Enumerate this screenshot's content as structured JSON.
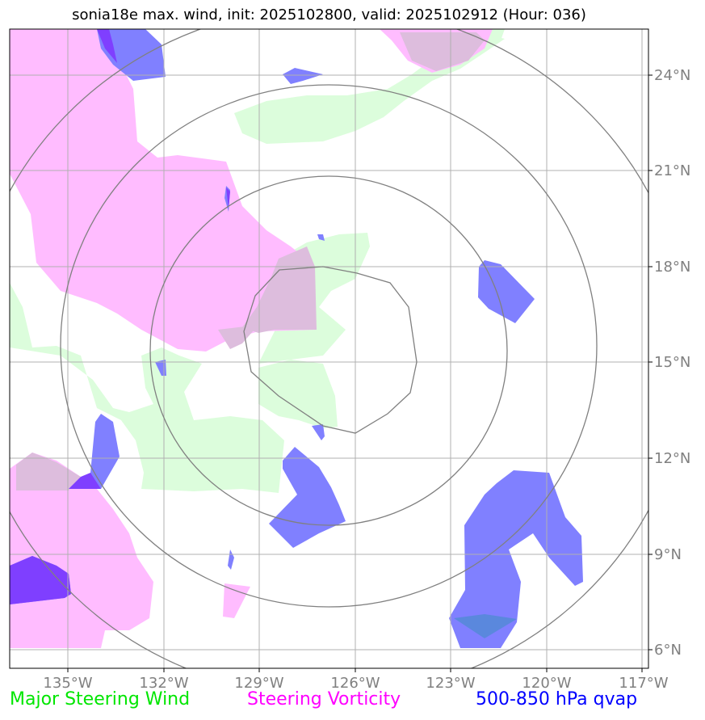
{
  "title": "sonia18e max. wind, init: 2025102800, valid: 2025102912 (Hour: 036)",
  "lon_labels": [
    "135°W",
    "132°W",
    "129°W",
    "126°W",
    "123°W",
    "120°W",
    "117°W"
  ],
  "lat_labels": [
    "24°N",
    "21°N",
    "18°N",
    "15°N",
    "12°N",
    "9°N",
    "6°N"
  ],
  "legend": [
    {
      "label": "Major Steering Wind",
      "color": "#00e600"
    },
    {
      "label": "Steering Vorticity",
      "color": "#ff00ff"
    },
    {
      "label": "500-850 hPa qvap",
      "color": "#0000ff"
    }
  ],
  "colors": {
    "wind_fill": "#dcfddc",
    "vorticity_fill": "#ffbcff",
    "overlap_fill": "#ddbddd",
    "qvap_fill": "#8080ff",
    "qvap_dark": "#7f3fff",
    "rings": "#808080",
    "grid": "#b0b0b0"
  }
}
